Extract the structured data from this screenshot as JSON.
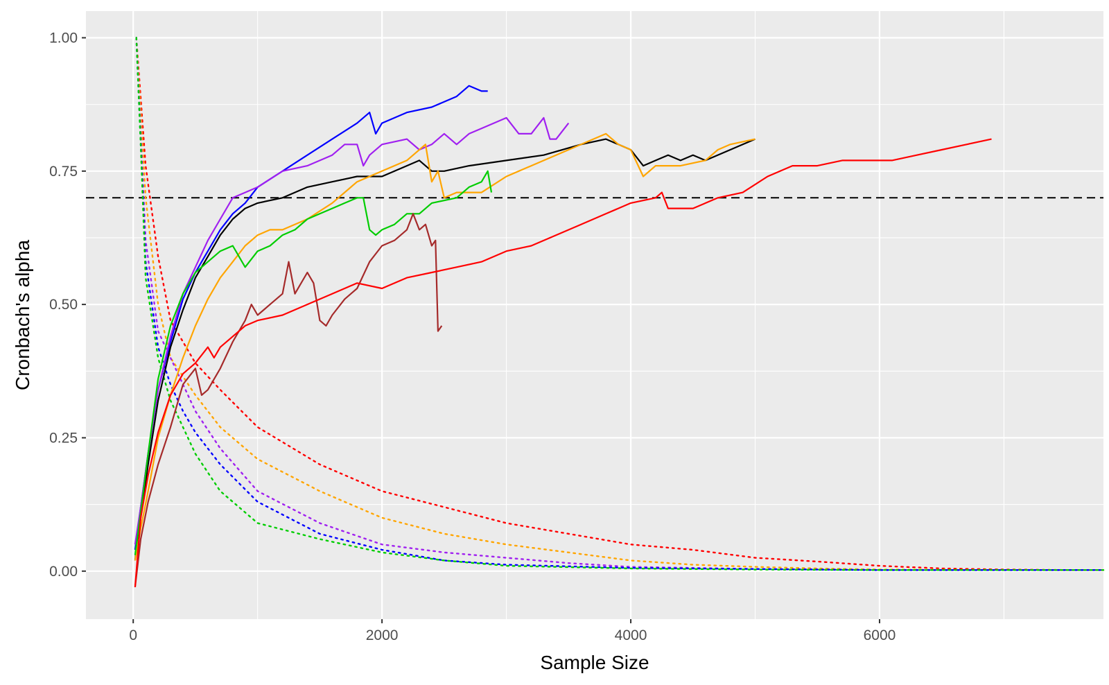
{
  "chart_data": {
    "type": "line",
    "title": "",
    "xlabel": "Sample Size",
    "ylabel": "Cronbach's alpha",
    "xlim": [
      -380,
      7800
    ],
    "ylim": [
      -0.09,
      1.05
    ],
    "xticks": [
      0,
      2000,
      4000,
      6000
    ],
    "xtick_labels": [
      "0",
      "2000",
      "4000",
      "6000"
    ],
    "yticks": [
      0,
      0.25,
      0.5,
      0.75,
      1.0
    ],
    "ytick_labels": [
      "0.00",
      "0.25",
      "0.50",
      "0.75",
      "1.00"
    ],
    "grid": true,
    "reference_line": {
      "y": 0.7,
      "style": "dashed",
      "color": "#000000"
    },
    "series": [
      {
        "name": "blue",
        "color": "#0000ff",
        "x": [
          15,
          60,
          120,
          200,
          300,
          400,
          500,
          600,
          700,
          800,
          900,
          1000,
          1200,
          1400,
          1600,
          1800,
          1900,
          1950,
          2000,
          2200,
          2400,
          2600,
          2700,
          2800,
          2850
        ],
        "y": [
          0.04,
          0.12,
          0.22,
          0.34,
          0.43,
          0.51,
          0.56,
          0.6,
          0.64,
          0.67,
          0.69,
          0.72,
          0.75,
          0.78,
          0.81,
          0.84,
          0.86,
          0.82,
          0.84,
          0.86,
          0.87,
          0.89,
          0.91,
          0.9,
          0.9
        ]
      },
      {
        "name": "purple",
        "color": "#a020f0",
        "x": [
          15,
          60,
          120,
          200,
          300,
          400,
          500,
          600,
          700,
          800,
          900,
          1000,
          1200,
          1400,
          1600,
          1700,
          1800,
          1850,
          1900,
          2000,
          2200,
          2300,
          2400,
          2500,
          2600,
          2700,
          2800,
          3000,
          3100,
          3200,
          3300,
          3350,
          3400,
          3500
        ],
        "y": [
          0.05,
          0.12,
          0.22,
          0.34,
          0.44,
          0.52,
          0.57,
          0.62,
          0.66,
          0.7,
          0.71,
          0.72,
          0.75,
          0.76,
          0.78,
          0.8,
          0.8,
          0.76,
          0.78,
          0.8,
          0.81,
          0.79,
          0.8,
          0.82,
          0.8,
          0.82,
          0.83,
          0.85,
          0.82,
          0.82,
          0.85,
          0.81,
          0.81,
          0.84
        ]
      },
      {
        "name": "black",
        "color": "#000000",
        "x": [
          15,
          60,
          120,
          200,
          300,
          400,
          500,
          600,
          700,
          800,
          900,
          1000,
          1200,
          1400,
          1600,
          1800,
          2000,
          2200,
          2300,
          2400,
          2500,
          2700,
          3000,
          3300,
          3600,
          3800,
          3900,
          4000,
          4100,
          4200,
          4300,
          4400,
          4500,
          4600,
          4800,
          5000
        ],
        "y": [
          0.02,
          0.1,
          0.2,
          0.32,
          0.42,
          0.49,
          0.55,
          0.59,
          0.63,
          0.66,
          0.68,
          0.69,
          0.7,
          0.72,
          0.73,
          0.74,
          0.74,
          0.76,
          0.77,
          0.75,
          0.75,
          0.76,
          0.77,
          0.78,
          0.8,
          0.81,
          0.8,
          0.79,
          0.76,
          0.77,
          0.78,
          0.77,
          0.78,
          0.77,
          0.79,
          0.81
        ]
      },
      {
        "name": "orange",
        "color": "#ffa500",
        "x": [
          15,
          60,
          120,
          200,
          300,
          400,
          500,
          600,
          700,
          800,
          900,
          1000,
          1100,
          1200,
          1400,
          1600,
          1800,
          2000,
          2200,
          2350,
          2400,
          2450,
          2500,
          2600,
          2800,
          3000,
          3200,
          3500,
          3800,
          3900,
          4000,
          4100,
          4200,
          4400,
          4600,
          4700,
          4800,
          5000
        ],
        "y": [
          0.02,
          0.08,
          0.15,
          0.25,
          0.33,
          0.4,
          0.46,
          0.51,
          0.55,
          0.58,
          0.61,
          0.63,
          0.64,
          0.64,
          0.66,
          0.69,
          0.73,
          0.75,
          0.77,
          0.8,
          0.73,
          0.75,
          0.7,
          0.71,
          0.71,
          0.74,
          0.76,
          0.79,
          0.82,
          0.8,
          0.79,
          0.74,
          0.76,
          0.76,
          0.77,
          0.79,
          0.8,
          0.81
        ]
      },
      {
        "name": "green",
        "color": "#00cd00",
        "x": [
          15,
          60,
          120,
          200,
          300,
          400,
          500,
          600,
          700,
          800,
          900,
          1000,
          1100,
          1200,
          1300,
          1400,
          1500,
          1600,
          1700,
          1800,
          1850,
          1900,
          1950,
          2000,
          2100,
          2200,
          2300,
          2400,
          2600,
          2700,
          2800,
          2850,
          2880
        ],
        "y": [
          0.03,
          0.11,
          0.22,
          0.36,
          0.46,
          0.52,
          0.56,
          0.58,
          0.6,
          0.61,
          0.57,
          0.6,
          0.61,
          0.63,
          0.64,
          0.66,
          0.67,
          0.68,
          0.69,
          0.7,
          0.7,
          0.64,
          0.63,
          0.64,
          0.65,
          0.67,
          0.67,
          0.69,
          0.7,
          0.72,
          0.73,
          0.75,
          0.71
        ]
      },
      {
        "name": "brown",
        "color": "#a52a2a",
        "x": [
          15,
          60,
          120,
          200,
          300,
          400,
          500,
          550,
          600,
          700,
          800,
          900,
          950,
          1000,
          1100,
          1200,
          1250,
          1300,
          1400,
          1450,
          1500,
          1550,
          1600,
          1700,
          1800,
          1900,
          2000,
          2100,
          2200,
          2250,
          2300,
          2350,
          2400,
          2430,
          2450,
          2480
        ],
        "y": [
          -0.03,
          0.06,
          0.13,
          0.2,
          0.27,
          0.35,
          0.38,
          0.33,
          0.34,
          0.38,
          0.43,
          0.47,
          0.5,
          0.48,
          0.5,
          0.52,
          0.58,
          0.52,
          0.56,
          0.54,
          0.47,
          0.46,
          0.48,
          0.51,
          0.53,
          0.58,
          0.61,
          0.62,
          0.64,
          0.67,
          0.64,
          0.65,
          0.61,
          0.62,
          0.45,
          0.46
        ]
      },
      {
        "name": "red",
        "color": "#ff0000",
        "x": [
          15,
          60,
          120,
          200,
          300,
          400,
          500,
          600,
          650,
          700,
          800,
          900,
          1000,
          1200,
          1400,
          1600,
          1800,
          2000,
          2200,
          2400,
          2600,
          2800,
          3000,
          3200,
          3400,
          3600,
          3800,
          4000,
          4200,
          4250,
          4300,
          4500,
          4700,
          4900,
          5100,
          5300,
          5500,
          5700,
          5900,
          6100,
          6300,
          6500,
          6700,
          6900
        ],
        "y": [
          -0.03,
          0.1,
          0.18,
          0.26,
          0.33,
          0.37,
          0.39,
          0.42,
          0.4,
          0.42,
          0.44,
          0.46,
          0.47,
          0.48,
          0.5,
          0.52,
          0.54,
          0.53,
          0.55,
          0.56,
          0.57,
          0.58,
          0.6,
          0.61,
          0.63,
          0.65,
          0.67,
          0.69,
          0.7,
          0.71,
          0.68,
          0.68,
          0.7,
          0.71,
          0.74,
          0.76,
          0.76,
          0.77,
          0.77,
          0.77,
          0.78,
          0.79,
          0.8,
          0.81
        ]
      },
      {
        "name": "red-dotted",
        "color": "#ff0000",
        "style": "dotted",
        "x": [
          25,
          100,
          200,
          300,
          500,
          700,
          1000,
          1500,
          2000,
          2500,
          3000,
          3500,
          4000,
          4500,
          5000,
          5500,
          6000,
          6500,
          7000,
          7500,
          7800
        ],
        "y": [
          1.0,
          0.76,
          0.59,
          0.47,
          0.39,
          0.34,
          0.27,
          0.2,
          0.15,
          0.12,
          0.09,
          0.07,
          0.05,
          0.04,
          0.025,
          0.018,
          0.01,
          0.005,
          0.003,
          0.002,
          0.002
        ]
      },
      {
        "name": "orange-dotted",
        "color": "#ffa500",
        "style": "dotted",
        "x": [
          25,
          100,
          200,
          300,
          500,
          700,
          1000,
          1500,
          2000,
          2500,
          3000,
          3500,
          4000,
          4500,
          5000,
          5500,
          6000,
          7000,
          7800
        ],
        "y": [
          1.0,
          0.7,
          0.5,
          0.4,
          0.33,
          0.27,
          0.21,
          0.15,
          0.1,
          0.07,
          0.05,
          0.035,
          0.02,
          0.012,
          0.008,
          0.005,
          0.003,
          0.002,
          0.002
        ]
      },
      {
        "name": "purple-dotted",
        "color": "#a020f0",
        "style": "dotted",
        "x": [
          25,
          100,
          200,
          300,
          400,
          500,
          700,
          1000,
          1500,
          2000,
          2500,
          3000,
          3500,
          4000,
          5000,
          6000,
          7800
        ],
        "y": [
          1.0,
          0.62,
          0.45,
          0.4,
          0.35,
          0.3,
          0.23,
          0.15,
          0.09,
          0.05,
          0.035,
          0.025,
          0.015,
          0.008,
          0.004,
          0.002,
          0.002
        ]
      },
      {
        "name": "blue-dotted",
        "color": "#0000ff",
        "style": "dotted",
        "x": [
          25,
          100,
          200,
          300,
          400,
          500,
          700,
          1000,
          1500,
          2000,
          2500,
          3000,
          4000,
          5000,
          6000,
          7800
        ],
        "y": [
          1.0,
          0.58,
          0.42,
          0.35,
          0.3,
          0.26,
          0.2,
          0.13,
          0.07,
          0.04,
          0.02,
          0.012,
          0.006,
          0.004,
          0.002,
          0.002
        ]
      },
      {
        "name": "green-dotted",
        "color": "#00cd00",
        "style": "dotted",
        "x": [
          25,
          60,
          100,
          200,
          300,
          400,
          500,
          700,
          1000,
          1500,
          2000,
          2500,
          3000,
          4000,
          5000,
          6000,
          7800
        ],
        "y": [
          1.0,
          0.8,
          0.55,
          0.4,
          0.32,
          0.27,
          0.22,
          0.15,
          0.09,
          0.06,
          0.035,
          0.02,
          0.01,
          0.005,
          0.003,
          0.002,
          0.002
        ]
      }
    ]
  }
}
